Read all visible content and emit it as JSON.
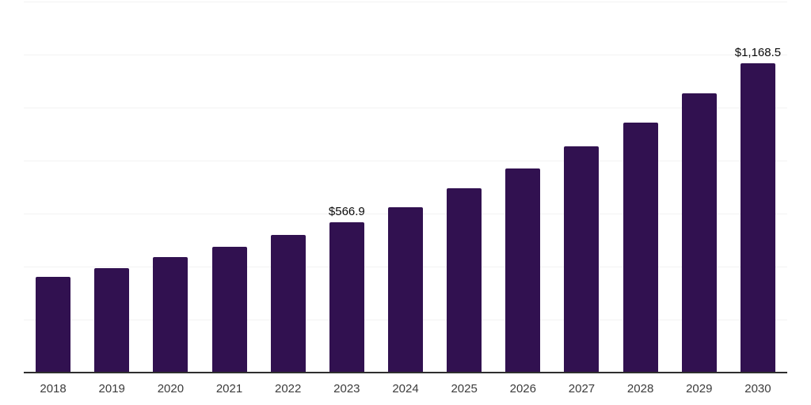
{
  "chart_data": {
    "type": "bar",
    "title": "",
    "xlabel": "",
    "ylabel": "",
    "categories": [
      "2018",
      "2019",
      "2020",
      "2021",
      "2022",
      "2023",
      "2024",
      "2025",
      "2026",
      "2027",
      "2028",
      "2029",
      "2030"
    ],
    "values": [
      361,
      394,
      436,
      475,
      519,
      566.9,
      624,
      696,
      770,
      854,
      943,
      1054,
      1168.5
    ],
    "data_labels": [
      {
        "category": "2023",
        "text": "$566.9"
      },
      {
        "category": "2030",
        "text": "$1,168.5"
      }
    ],
    "ylim": [
      0,
      1400
    ],
    "gridline_step": 200,
    "grid": "horizontal-only",
    "legend": "none",
    "y_axis_ticks_visible": false,
    "colors": {
      "bar": "#311150",
      "gridline": "#f2f2f2",
      "axis_line": "#2f2f2f",
      "tick_label": "#3c3c3c",
      "data_label": "#0a0a0a",
      "background": "#ffffff"
    }
  }
}
